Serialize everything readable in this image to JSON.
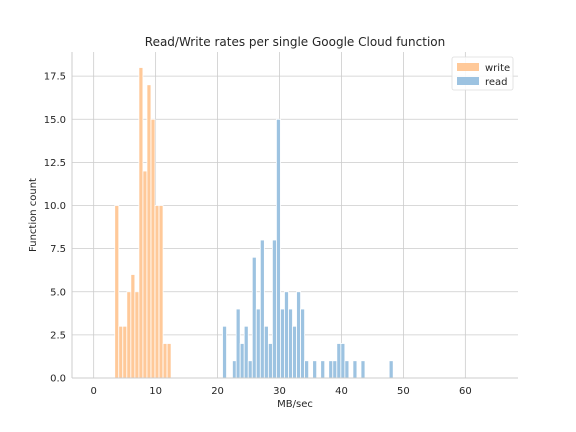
{
  "chart_data": {
    "type": "bar",
    "title": "Read/Write rates per single Google Cloud function",
    "xlabel": "MB/sec",
    "ylabel": "Function count",
    "xlim": [
      -3.5,
      68.5
    ],
    "ylim": [
      0,
      18.9
    ],
    "xticks": [
      0,
      10,
      20,
      30,
      40,
      50,
      60
    ],
    "yticks": [
      0.0,
      2.5,
      5.0,
      7.5,
      10.0,
      12.5,
      15.0,
      17.5
    ],
    "grid": true,
    "legend_position": "top-right",
    "bin_width": 0.65,
    "series": [
      {
        "name": "write",
        "color": "#ffc999",
        "bins": [
          {
            "x": 3.4,
            "count": 10
          },
          {
            "x": 4.05,
            "count": 3
          },
          {
            "x": 4.7,
            "count": 3
          },
          {
            "x": 5.35,
            "count": 5
          },
          {
            "x": 6.0,
            "count": 6
          },
          {
            "x": 6.65,
            "count": 5
          },
          {
            "x": 7.3,
            "count": 18
          },
          {
            "x": 7.95,
            "count": 12
          },
          {
            "x": 8.6,
            "count": 17
          },
          {
            "x": 9.25,
            "count": 15
          },
          {
            "x": 9.9,
            "count": 10
          },
          {
            "x": 10.55,
            "count": 10
          },
          {
            "x": 11.2,
            "count": 2
          },
          {
            "x": 11.85,
            "count": 2
          }
        ]
      },
      {
        "name": "read",
        "color": "#9dc3e1",
        "bins": [
          {
            "x": 20.8,
            "count": 3
          },
          {
            "x": 22.4,
            "count": 1
          },
          {
            "x": 23.0,
            "count": 4
          },
          {
            "x": 23.65,
            "count": 2
          },
          {
            "x": 24.3,
            "count": 3
          },
          {
            "x": 24.95,
            "count": 1
          },
          {
            "x": 25.6,
            "count": 7
          },
          {
            "x": 26.25,
            "count": 4
          },
          {
            "x": 26.9,
            "count": 8
          },
          {
            "x": 27.55,
            "count": 3
          },
          {
            "x": 28.2,
            "count": 2
          },
          {
            "x": 28.85,
            "count": 8
          },
          {
            "x": 29.5,
            "count": 15
          },
          {
            "x": 30.15,
            "count": 4
          },
          {
            "x": 30.8,
            "count": 5
          },
          {
            "x": 31.45,
            "count": 4
          },
          {
            "x": 32.1,
            "count": 3
          },
          {
            "x": 32.75,
            "count": 5
          },
          {
            "x": 33.4,
            "count": 4
          },
          {
            "x": 34.05,
            "count": 1
          },
          {
            "x": 35.35,
            "count": 1
          },
          {
            "x": 36.65,
            "count": 1
          },
          {
            "x": 37.95,
            "count": 1
          },
          {
            "x": 38.6,
            "count": 1
          },
          {
            "x": 39.25,
            "count": 2
          },
          {
            "x": 39.9,
            "count": 2
          },
          {
            "x": 40.55,
            "count": 1
          },
          {
            "x": 41.85,
            "count": 1
          },
          {
            "x": 43.15,
            "count": 1
          },
          {
            "x": 47.7,
            "count": 1
          }
        ]
      }
    ]
  }
}
